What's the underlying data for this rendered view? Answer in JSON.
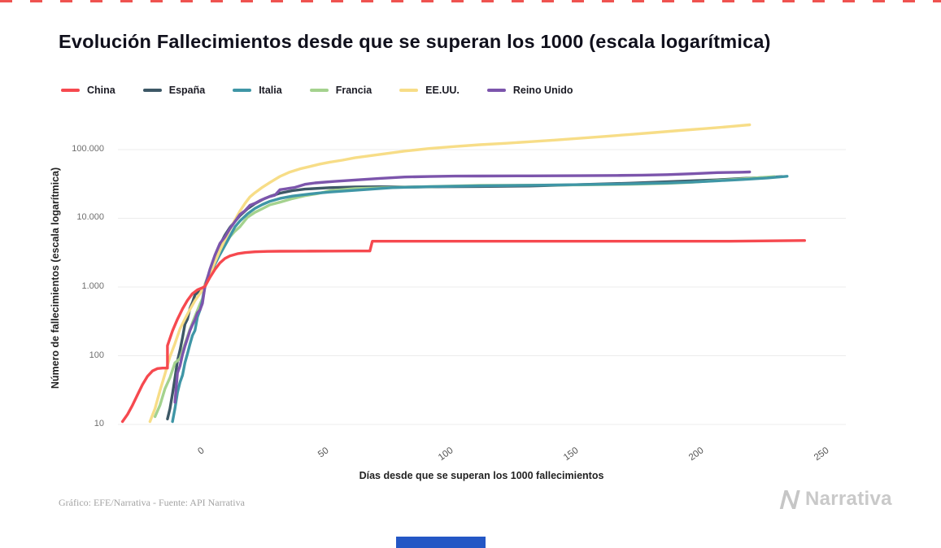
{
  "page": {
    "title": "Evolución Fallecimientos desde que se superan los 1000 (escala logarítmica)",
    "credit": "Gráfico: EFE/Narrativa - Fuente: API Narrativa",
    "brand": "Narrativa"
  },
  "decor": {
    "top_dash_color": "#ef5350",
    "bottom_bar_color": "#2457c5",
    "grid_color": "#ececec",
    "brand_color": "#c9c9c9"
  },
  "chart_data": {
    "type": "line",
    "title": "Evolución Fallecimientos desde que se superan los 1000 (escala logarítmica)",
    "xlabel": "Días desde que se superan los 1000 fallecimientos",
    "ylabel": "Número de fallecimientos (escala logarítmica)",
    "y_scale": "log",
    "xlim": [
      -35,
      255
    ],
    "ylim": [
      10,
      300000
    ],
    "grid": true,
    "legend_position": "top-left",
    "x_tick_labels": [
      "0",
      "50",
      "100",
      "150",
      "200",
      "250"
    ],
    "x_tick_values": [
      0,
      50,
      100,
      150,
      200,
      250
    ],
    "y_tick_labels": [
      "100.000",
      "10.000",
      "1.000",
      "100",
      "10"
    ],
    "y_tick_values": [
      100000,
      10000,
      1000,
      100,
      10
    ],
    "series": [
      {
        "id": "china",
        "name": "China",
        "color": "#f6494f",
        "points": [
          [
            -33,
            11
          ],
          [
            -31,
            14
          ],
          [
            -29,
            19
          ],
          [
            -27,
            27
          ],
          [
            -25,
            38
          ],
          [
            -23,
            50
          ],
          [
            -21,
            60
          ],
          [
            -19,
            65
          ],
          [
            -17,
            66
          ],
          [
            -15,
            66
          ],
          [
            -15,
            140
          ],
          [
            -13,
            230
          ],
          [
            -11,
            340
          ],
          [
            -9,
            480
          ],
          [
            -7,
            640
          ],
          [
            -5,
            800
          ],
          [
            -3,
            910
          ],
          [
            -1,
            975
          ],
          [
            0,
            1020
          ],
          [
            2,
            1380
          ],
          [
            4,
            1800
          ],
          [
            6,
            2240
          ],
          [
            8,
            2600
          ],
          [
            10,
            2840
          ],
          [
            13,
            3050
          ],
          [
            16,
            3170
          ],
          [
            20,
            3250
          ],
          [
            25,
            3300
          ],
          [
            30,
            3320
          ],
          [
            40,
            3330
          ],
          [
            50,
            3335
          ],
          [
            60,
            3340
          ],
          [
            66,
            3342
          ],
          [
            67,
            4632
          ],
          [
            80,
            4633
          ],
          [
            100,
            4634
          ],
          [
            140,
            4634
          ],
          [
            180,
            4636
          ],
          [
            210,
            4642
          ],
          [
            240,
            4748
          ]
        ]
      },
      {
        "id": "espana",
        "name": "España",
        "color": "#3d5866",
        "points": [
          [
            -15,
            12
          ],
          [
            -14,
            17
          ],
          [
            -13,
            28
          ],
          [
            -12,
            47
          ],
          [
            -11,
            84
          ],
          [
            -10,
            120
          ],
          [
            -9,
            183
          ],
          [
            -8,
            288
          ],
          [
            -7,
            342
          ],
          [
            -6,
            491
          ],
          [
            -5,
            594
          ],
          [
            -4,
            767
          ],
          [
            -3,
            830
          ],
          [
            -2,
            890
          ],
          [
            -1,
            942
          ],
          [
            0,
            1002
          ],
          [
            2,
            1720
          ],
          [
            4,
            2696
          ],
          [
            6,
            4089
          ],
          [
            8,
            5690
          ],
          [
            10,
            7340
          ],
          [
            12,
            9053
          ],
          [
            14,
            10935
          ],
          [
            17,
            13716
          ],
          [
            20,
            16353
          ],
          [
            23,
            18708
          ],
          [
            26,
            20852
          ],
          [
            30,
            23190
          ],
          [
            35,
            25264
          ],
          [
            40,
            26621
          ],
          [
            50,
            27940
          ],
          [
            60,
            28628
          ],
          [
            70,
            28752
          ],
          [
            80,
            28445
          ],
          [
            95,
            28818
          ],
          [
            110,
            29011
          ],
          [
            130,
            29516
          ],
          [
            150,
            30904
          ],
          [
            170,
            32486
          ],
          [
            190,
            34521
          ],
          [
            205,
            36257
          ],
          [
            215,
            38118
          ],
          [
            225,
            39345
          ],
          [
            231,
            40461
          ]
        ]
      },
      {
        "id": "italia",
        "name": "Italia",
        "color": "#3f96a6",
        "points": [
          [
            -13,
            11
          ],
          [
            -12,
            17
          ],
          [
            -11,
            29
          ],
          [
            -10,
            41
          ],
          [
            -9,
            52
          ],
          [
            -8,
            79
          ],
          [
            -7,
            107
          ],
          [
            -6,
            148
          ],
          [
            -5,
            197
          ],
          [
            -4,
            233
          ],
          [
            -3,
            366
          ],
          [
            -2,
            463
          ],
          [
            -1,
            631
          ],
          [
            0,
            1016
          ],
          [
            2,
            1441
          ],
          [
            4,
            2158
          ],
          [
            6,
            2978
          ],
          [
            8,
            4032
          ],
          [
            10,
            5476
          ],
          [
            12,
            7503
          ],
          [
            14,
            9136
          ],
          [
            17,
            11591
          ],
          [
            20,
            13915
          ],
          [
            23,
            15887
          ],
          [
            26,
            17669
          ],
          [
            30,
            19468
          ],
          [
            35,
            21067
          ],
          [
            40,
            22170
          ],
          [
            45,
            23227
          ],
          [
            50,
            24114
          ],
          [
            60,
            25549
          ],
          [
            75,
            27967
          ],
          [
            90,
            28884
          ],
          [
            110,
            29684
          ],
          [
            130,
            30201
          ],
          [
            150,
            30911
          ],
          [
            170,
            31763
          ],
          [
            185,
            32616
          ],
          [
            195,
            33689
          ],
          [
            205,
            35073
          ],
          [
            215,
            36705
          ],
          [
            225,
            38618
          ],
          [
            233,
            40926
          ]
        ]
      },
      {
        "id": "francia",
        "name": "Francia",
        "color": "#a4d28e",
        "points": [
          [
            -20,
            13
          ],
          [
            -18,
            19
          ],
          [
            -16,
            33
          ],
          [
            -14,
            48
          ],
          [
            -12,
            79
          ],
          [
            -10,
            91
          ],
          [
            -8,
            149
          ],
          [
            -6,
            244
          ],
          [
            -4,
            372
          ],
          [
            -2,
            562
          ],
          [
            -1,
            674
          ],
          [
            0,
            1100
          ],
          [
            2,
            1696
          ],
          [
            4,
            2314
          ],
          [
            6,
            3024
          ],
          [
            8,
            4032
          ],
          [
            10,
            5387
          ],
          [
            12,
            6507
          ],
          [
            14,
            7560
          ],
          [
            17,
            10328
          ],
          [
            20,
            12210
          ],
          [
            23,
            13832
          ],
          [
            26,
            15729
          ],
          [
            30,
            17167
          ],
          [
            35,
            19323
          ],
          [
            40,
            21340
          ],
          [
            45,
            22856
          ],
          [
            50,
            25201
          ],
          [
            60,
            27074
          ],
          [
            75,
            28108
          ],
          [
            90,
            28940
          ],
          [
            110,
            30165
          ],
          [
            130,
            30365
          ],
          [
            150,
            30661
          ],
          [
            170,
            31248
          ],
          [
            185,
            32230
          ],
          [
            195,
            33477
          ],
          [
            205,
            35541
          ],
          [
            215,
            37435
          ],
          [
            222,
            39037
          ],
          [
            228,
            40480
          ]
        ]
      },
      {
        "id": "eeuu",
        "name": "EE.UU.",
        "color": "#f7dd87",
        "points": [
          [
            -22,
            11
          ],
          [
            -20,
            17
          ],
          [
            -18,
            31
          ],
          [
            -16,
            54
          ],
          [
            -14,
            97
          ],
          [
            -12,
            150
          ],
          [
            -10,
            246
          ],
          [
            -8,
            344
          ],
          [
            -6,
            471
          ],
          [
            -4,
            633
          ],
          [
            -2,
            805
          ],
          [
            0,
            1050
          ],
          [
            2,
            1531
          ],
          [
            4,
            2314
          ],
          [
            6,
            3420
          ],
          [
            8,
            4888
          ],
          [
            10,
            6860
          ],
          [
            12,
            9462
          ],
          [
            14,
            12722
          ],
          [
            16,
            16478
          ],
          [
            18,
            20462
          ],
          [
            20,
            23529
          ],
          [
            23,
            28326
          ],
          [
            26,
            33284
          ],
          [
            30,
            40661
          ],
          [
            34,
            47180
          ],
          [
            38,
            52459
          ],
          [
            42,
            56795
          ],
          [
            46,
            61547
          ],
          [
            50,
            65776
          ],
          [
            55,
            70115
          ],
          [
            60,
            76032
          ],
          [
            70,
            85197
          ],
          [
            80,
            95235
          ],
          [
            90,
            103781
          ],
          [
            100,
            111007
          ],
          [
            110,
            117717
          ],
          [
            120,
            123347
          ],
          [
            130,
            130430
          ],
          [
            140,
            137674
          ],
          [
            150,
            146183
          ],
          [
            160,
            155478
          ],
          [
            170,
            166027
          ],
          [
            180,
            177279
          ],
          [
            190,
            189703
          ],
          [
            200,
            202213
          ],
          [
            210,
            216025
          ],
          [
            218,
            229686
          ]
        ]
      },
      {
        "id": "reino-unido",
        "name": "Reino Unido",
        "color": "#7c55ac",
        "points": [
          [
            -12,
            21
          ],
          [
            -11,
            56
          ],
          [
            -10,
            71
          ],
          [
            -9,
            104
          ],
          [
            -8,
            138
          ],
          [
            -7,
            178
          ],
          [
            -6,
            233
          ],
          [
            -5,
            281
          ],
          [
            -4,
            335
          ],
          [
            -3,
            422
          ],
          [
            -2,
            465
          ],
          [
            -1,
            578
          ],
          [
            0,
            1019
          ],
          [
            2,
            1808
          ],
          [
            4,
            2921
          ],
          [
            6,
            4313
          ],
          [
            8,
            5373
          ],
          [
            10,
            7097
          ],
          [
            12,
            8958
          ],
          [
            14,
            11329
          ],
          [
            16,
            12868
          ],
          [
            18,
            15464
          ],
          [
            20,
            16509
          ],
          [
            22,
            18100
          ],
          [
            24,
            19506
          ],
          [
            26,
            20732
          ],
          [
            28,
            21678
          ],
          [
            30,
            26097
          ],
          [
            32,
            26771
          ],
          [
            34,
            27510
          ],
          [
            36,
            28131
          ],
          [
            40,
            31241
          ],
          [
            44,
            32692
          ],
          [
            48,
            33614
          ],
          [
            52,
            34466
          ],
          [
            60,
            36042
          ],
          [
            70,
            38161
          ],
          [
            80,
            39904
          ],
          [
            90,
            40542
          ],
          [
            100,
            41128
          ],
          [
            110,
            41279
          ],
          [
            130,
            41509
          ],
          [
            150,
            41732
          ],
          [
            165,
            41988
          ],
          [
            175,
            42445
          ],
          [
            185,
            43155
          ],
          [
            195,
            44571
          ],
          [
            205,
            46229
          ],
          [
            210,
            46555
          ],
          [
            215,
            46853
          ],
          [
            218,
            47250
          ]
        ]
      }
    ]
  }
}
